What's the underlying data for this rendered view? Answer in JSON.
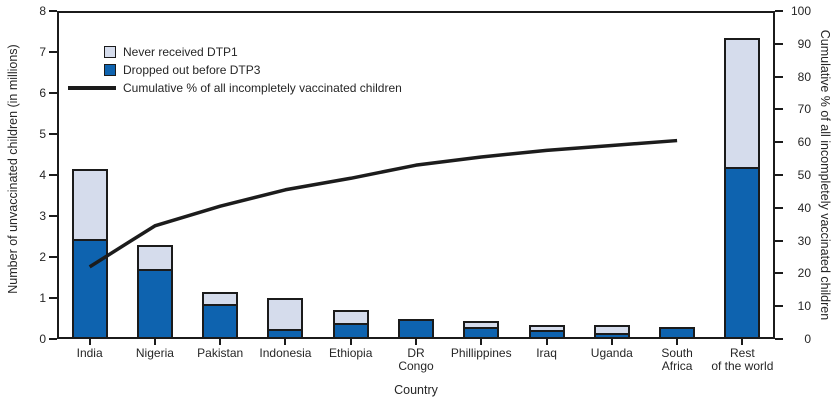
{
  "chart_data": {
    "type": "bar",
    "subtype": "pareto: stacked bars with cumulative percent line, dual y-axes",
    "title": "",
    "categories": [
      "India",
      "Nigeria",
      "Pakistan",
      "Indonesia",
      "Ethiopia",
      "DR Congo",
      "Phillippines",
      "Iraq",
      "Uganda",
      "South Africa",
      "Rest of the world"
    ],
    "categories_display": [
      "India",
      "Nigeria",
      "Pakistan",
      "Indonesia",
      "Ethiopia",
      "DR\nCongo",
      "Phillippines",
      "Iraq",
      "Uganda",
      "South\nAfrica",
      "Rest\nof the world"
    ],
    "series": [
      {
        "name": "Dropped out before DTP3",
        "role": "bar-lower-segment",
        "color": "#0e63af",
        "values": [
          2.45,
          1.7,
          0.85,
          0.25,
          0.4,
          0.5,
          0.3,
          0.22,
          0.15,
          0.3,
          4.2
        ]
      },
      {
        "name": "Never received DTP1",
        "role": "bar-upper-segment",
        "color": "#d5dcec",
        "values": [
          1.7,
          0.6,
          0.3,
          0.75,
          0.3,
          0,
          0.15,
          0.13,
          0.2,
          0,
          3.15
        ]
      }
    ],
    "bar_totals": [
      4.15,
      2.3,
      1.15,
      1.0,
      0.7,
      0.5,
      0.45,
      0.35,
      0.35,
      0.3,
      7.35
    ],
    "line_series": {
      "name": "Cumulative % of all incompletely vaccinated children",
      "color": "#1c1c1c",
      "axis": "right",
      "values": [
        22,
        34.5,
        40.5,
        45.5,
        49,
        53,
        55.5,
        57.5,
        59,
        60.5
      ],
      "covers_categories": "India through South Africa (no point for Rest of the world)"
    },
    "xlabel": "Country",
    "ylabel_left": "Number of unvaccinated children (in millions)",
    "ylabel_right": "Cumulative % of all incompletely vaccinated children",
    "axis_left": {
      "min": 0,
      "max": 8,
      "step": 1
    },
    "axis_right": {
      "min": 0,
      "max": 100,
      "step": 10
    },
    "grid": "off",
    "legend_position": "upper-left inside plot",
    "legend": [
      {
        "label": "Never received DTP1",
        "swatch": "light-square"
      },
      {
        "label": "Dropped out before DTP3",
        "swatch": "blue-square"
      },
      {
        "label": "Cumulative % of all incompletely vaccinated children",
        "swatch": "line"
      }
    ],
    "colors": {
      "bar_blue": "#0e63af",
      "bar_light": "#d5dcec",
      "outline": "#1b1b1b",
      "line": "#1c1c1c",
      "text": "#262626",
      "background": "#ffffff"
    }
  }
}
